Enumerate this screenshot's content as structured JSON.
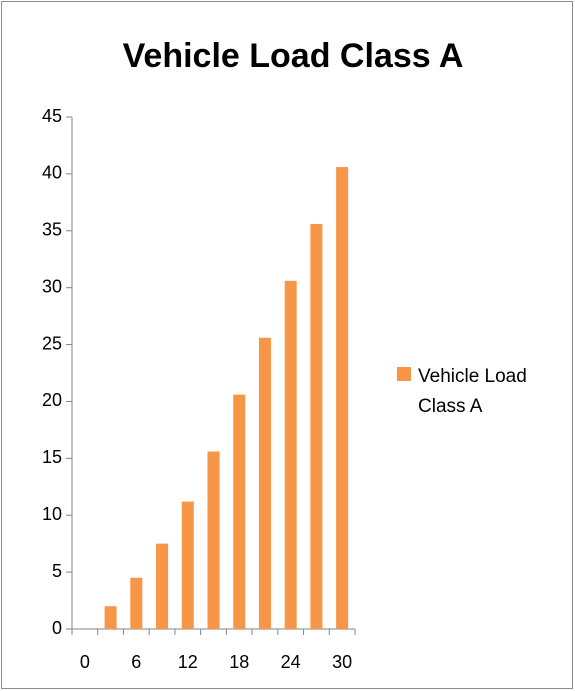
{
  "chart_data": {
    "type": "bar",
    "title": "Vehicle Load Class A",
    "categories": [
      "0",
      null,
      "6",
      null,
      "12",
      null,
      "18",
      null,
      "24",
      null,
      "30"
    ],
    "series": [
      {
        "name": "Vehicle Load Class A",
        "color": "#f79646",
        "values": [
          0,
          2,
          4.5,
          7.5,
          11.2,
          15.6,
          20.6,
          25.6,
          30.6,
          35.6,
          40.6
        ]
      }
    ],
    "ylim": [
      0,
      45
    ],
    "yticks": [
      0,
      5,
      10,
      15,
      20,
      25,
      30,
      35,
      40,
      45
    ],
    "grid": false,
    "legend": "right"
  }
}
